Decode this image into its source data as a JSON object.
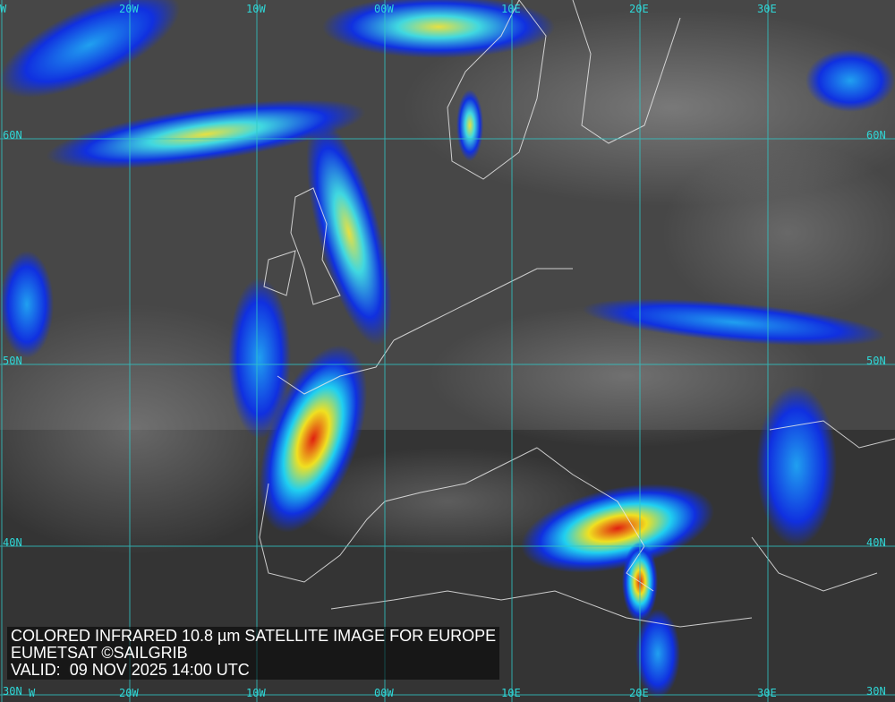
{
  "caption": {
    "title": "COLORED INFRARED 10.8 µm SATELLITE IMAGE FOR EUROPE",
    "credit": "EUMETSAT ©SAILGRIB",
    "valid": "VALID:  09 NOV 2025 14:00 UTC"
  },
  "grid": {
    "top_longitudes": [
      "W",
      "20W",
      "10W",
      "00W",
      "10E",
      "20E",
      "30E"
    ],
    "bottom_longitudes": [
      "W",
      "20W",
      "10W",
      "00W",
      "10E",
      "20E",
      "30E"
    ],
    "left_latitudes": [
      "60N",
      "50N",
      "40N",
      "30N"
    ],
    "right_latitudes": [
      "60N",
      "50N",
      "40N",
      "30N"
    ],
    "line_color": "#2fc8c8"
  },
  "palette": {
    "cold_cloud_blue": "#1030e0",
    "cyan": "#20d0f0",
    "yellow": "#f0e020",
    "red": "#e02010"
  }
}
